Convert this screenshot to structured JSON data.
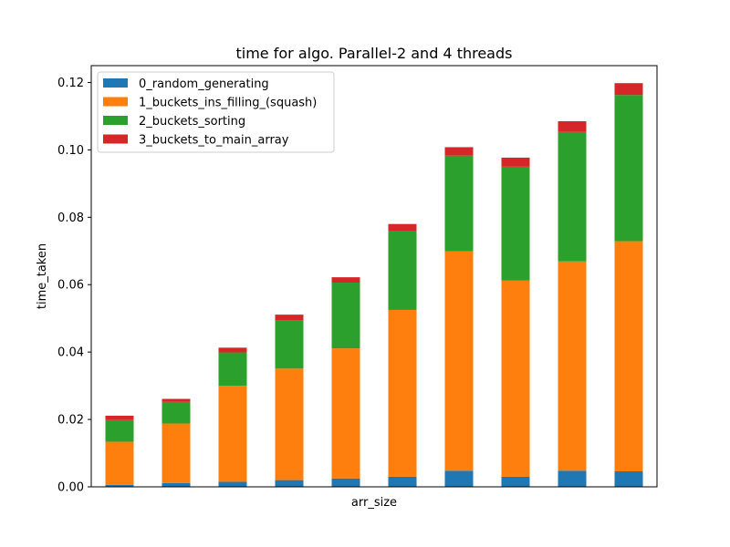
{
  "chart_data": {
    "type": "bar",
    "stacked": true,
    "title": "time for algo. Parallel-2 and 4 threads",
    "xlabel": "arr_size",
    "ylabel": "time_taken",
    "ylim": [
      0,
      0.125
    ],
    "yticks": [
      "0.00",
      "0.02",
      "0.04",
      "0.06",
      "0.08",
      "0.10",
      "0.12"
    ],
    "ytick_values": [
      0,
      0.02,
      0.04,
      0.06,
      0.08,
      0.1,
      0.12
    ],
    "bar_count": 10,
    "legend_position": "upper-left",
    "series": [
      {
        "name": "0_random_generating",
        "color": "#1f77b4",
        "values": [
          0.0006,
          0.0011,
          0.0015,
          0.002,
          0.0025,
          0.003,
          0.0048,
          0.003,
          0.0048,
          0.0046
        ]
      },
      {
        "name": "1_buckets_ins_filling_(squash)",
        "color": "#ff7f0e",
        "values": [
          0.0128,
          0.0177,
          0.0285,
          0.0331,
          0.0386,
          0.0495,
          0.0651,
          0.0582,
          0.0621,
          0.0683
        ]
      },
      {
        "name": "2_buckets_sorting",
        "color": "#2ca02c",
        "values": [
          0.0064,
          0.0064,
          0.0099,
          0.0144,
          0.0195,
          0.0233,
          0.0284,
          0.0338,
          0.0384,
          0.0434
        ]
      },
      {
        "name": "3_buckets_to_main_array",
        "color": "#d62728",
        "values": [
          0.0013,
          0.0009,
          0.0014,
          0.0016,
          0.0016,
          0.0022,
          0.0025,
          0.0027,
          0.0032,
          0.0035
        ]
      }
    ]
  }
}
